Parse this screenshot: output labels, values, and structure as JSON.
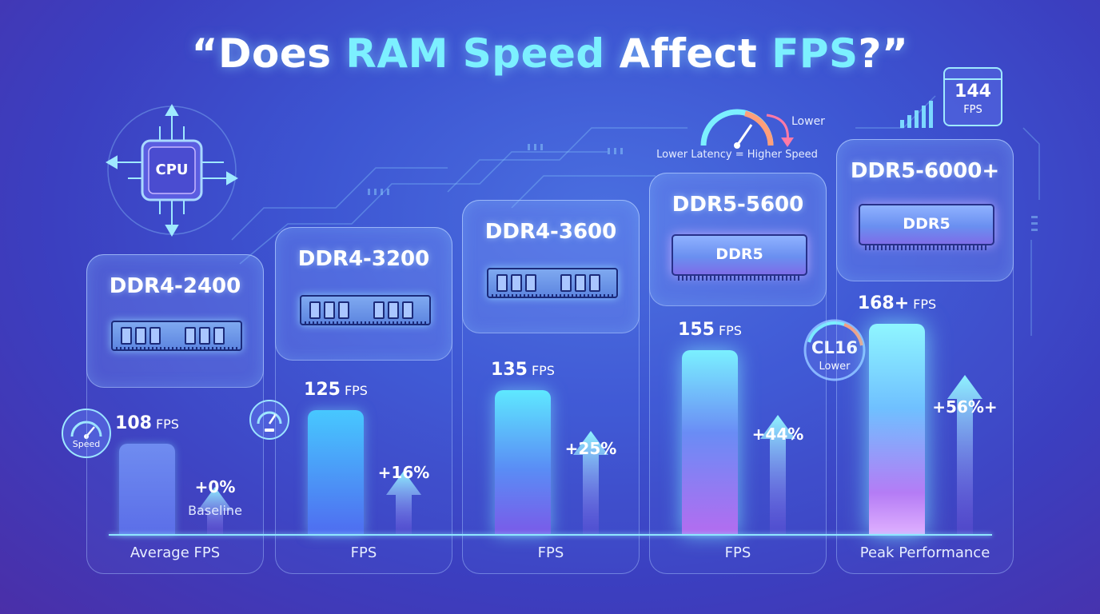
{
  "title": {
    "open_quote": "“",
    "w1": "Does",
    "w2": "RAM Speed",
    "w3": "Affect",
    "w4": "FPS",
    "end": "?”"
  },
  "cpu_label": "CPU",
  "speed_gauge_label": "Speed",
  "latency": {
    "gauge_label": "Lower",
    "caption": "Lower Latency = Higher Speed"
  },
  "cl_badge": {
    "value": "CL16",
    "sub": "Lower"
  },
  "fps_monitor": {
    "value": "144",
    "unit": "FPS"
  },
  "ddr5_chip_label": "DDR5",
  "colors": {
    "accent_cyan": "#7cf0ff",
    "bg_blue": "#3d55d2",
    "bg_purple": "#4a2fa8"
  },
  "chart_data": {
    "type": "bar",
    "title": "“Does RAM Speed Affect FPS?”",
    "categories": [
      "DDR4-2400",
      "DDR4-3200",
      "DDR4-3600",
      "DDR5-5600",
      "DDR5-6000+"
    ],
    "values": [
      108,
      125,
      135,
      155,
      168
    ],
    "value_labels": [
      "108",
      "125",
      "135",
      "155",
      "168+"
    ],
    "unit": "FPS",
    "changes": [
      "+0%",
      "+16%",
      "+25%",
      "+44%",
      "+56%+"
    ],
    "change_notes": [
      "Baseline",
      "",
      "",
      "",
      ""
    ],
    "column_labels": [
      "Average FPS",
      "FPS",
      "FPS",
      "FPS",
      "Peak Performance"
    ],
    "ylim": [
      0,
      175
    ],
    "grid": false
  }
}
